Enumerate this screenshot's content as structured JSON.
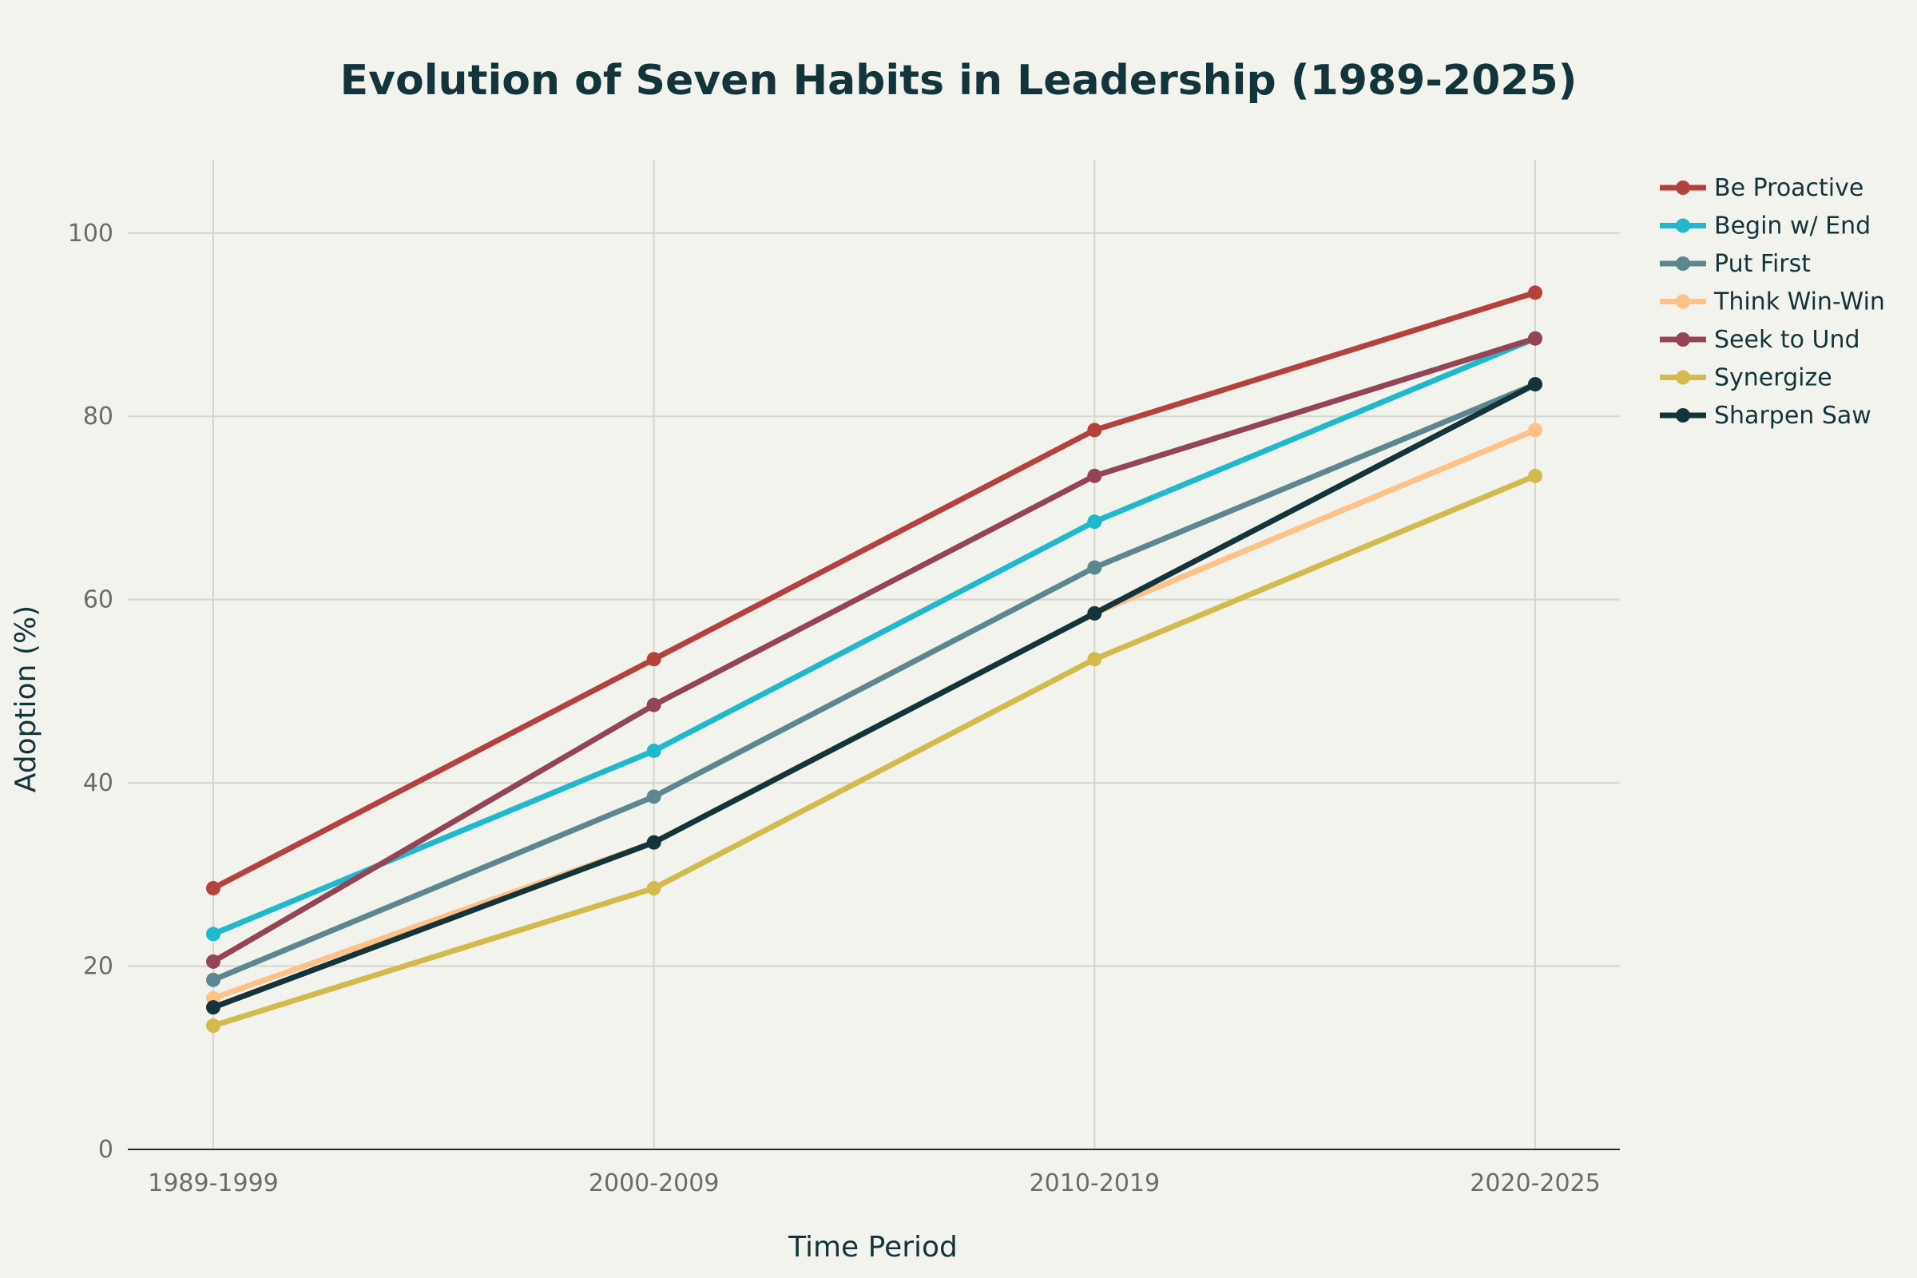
{
  "chart_data": {
    "type": "line",
    "title": "Evolution of Seven Habits in Leadership (1989-2025)",
    "xlabel": "Time Period",
    "ylabel": "Adoption (%)",
    "categories": [
      "1989-1999",
      "2000-2009",
      "2010-2019",
      "2020-2025"
    ],
    "ylim": [
      0,
      108
    ],
    "yticks": [
      0,
      20,
      40,
      60,
      80,
      100
    ],
    "grid": true,
    "legend_position": "top-right",
    "series": [
      {
        "name": "Be Proactive",
        "color": "#b4413c",
        "values": [
          28.5,
          53.5,
          78.5,
          93.5
        ]
      },
      {
        "name": "Begin w/ End",
        "color": "#1fb8cd",
        "values": [
          23.5,
          43.5,
          68.5,
          88.5
        ]
      },
      {
        "name": "Put First",
        "color": "#5d878f",
        "values": [
          18.5,
          38.5,
          63.5,
          83.5
        ]
      },
      {
        "name": "Think Win-Win",
        "color": "#ffc185",
        "values": [
          16.5,
          33.5,
          58.5,
          78.5
        ]
      },
      {
        "name": "Seek to Und",
        "color": "#944454",
        "values": [
          20.5,
          48.5,
          73.5,
          88.5
        ]
      },
      {
        "name": "Synergize",
        "color": "#d2ba4c",
        "values": [
          13.5,
          28.5,
          53.5,
          73.5
        ]
      },
      {
        "name": "Sharpen Saw",
        "color": "#13343b",
        "values": [
          15.5,
          33.5,
          58.5,
          83.5
        ]
      }
    ]
  }
}
